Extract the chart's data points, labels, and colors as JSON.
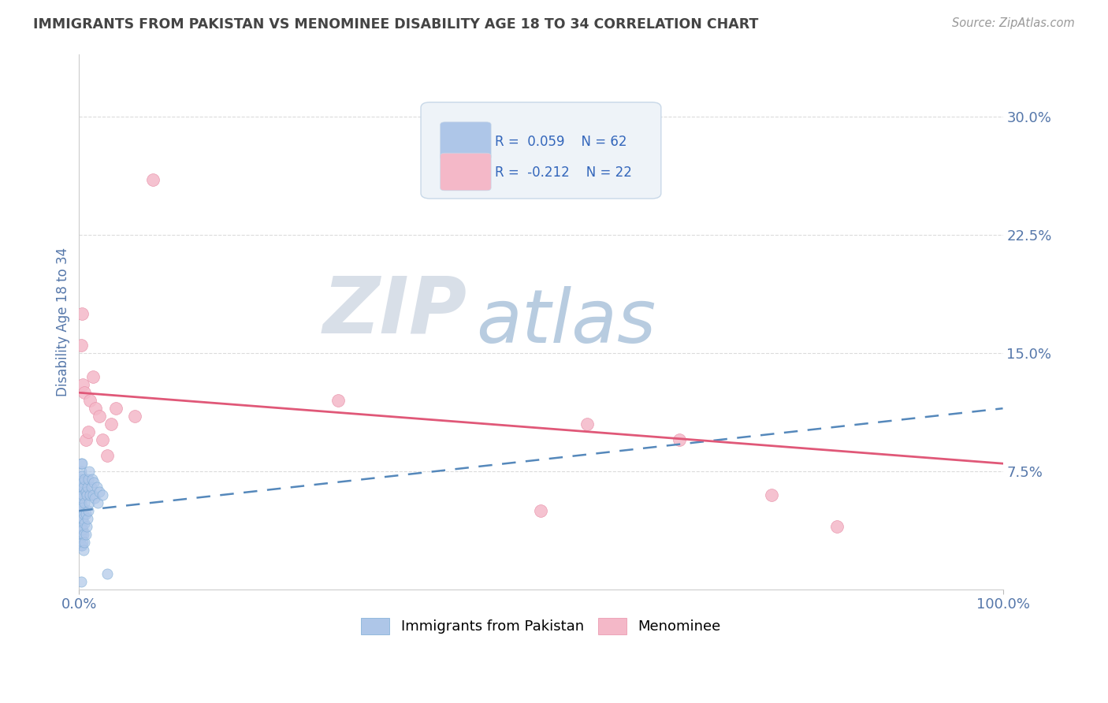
{
  "title": "IMMIGRANTS FROM PAKISTAN VS MENOMINEE DISABILITY AGE 18 TO 34 CORRELATION CHART",
  "source_text": "Source: ZipAtlas.com",
  "ylabel": "Disability Age 18 to 34",
  "xlim": [
    0.0,
    1.0
  ],
  "ylim": [
    0.0,
    0.34
  ],
  "yticks": [
    0.075,
    0.15,
    0.225,
    0.3
  ],
  "ytick_labels": [
    "7.5%",
    "15.0%",
    "22.5%",
    "30.0%"
  ],
  "xtick_labels": [
    "0.0%",
    "100.0%"
  ],
  "xticks": [
    0.0,
    1.0
  ],
  "series1_name": "Immigrants from Pakistan",
  "series1_R": 0.059,
  "series1_N": 62,
  "series1_color": "#aec6e8",
  "series1_edge_color": "#7aaad4",
  "series1_line_color": "#5588bb",
  "series2_name": "Menominee",
  "series2_R": -0.212,
  "series2_N": 22,
  "series2_color": "#f4b8c8",
  "series2_edge_color": "#e890a8",
  "series2_line_color": "#e05878",
  "watermark_zip_color": "#d8dfe8",
  "watermark_atlas_color": "#b8cce0",
  "background_color": "#ffffff",
  "grid_color": "#cccccc",
  "title_color": "#444444",
  "axis_label_color": "#5577aa",
  "legend_R_color": "#3366bb",
  "legend_box_color": "#eef3f8",
  "legend_border_color": "#c8d8e8",
  "blue_line_x0": 0.0,
  "blue_line_y0": 0.05,
  "blue_line_x1": 1.0,
  "blue_line_y1": 0.115,
  "pink_line_x0": 0.0,
  "pink_line_y0": 0.125,
  "pink_line_x1": 1.0,
  "pink_line_y1": 0.08,
  "blue_scatter_x": [
    0.001,
    0.001,
    0.001,
    0.001,
    0.001,
    0.002,
    0.002,
    0.002,
    0.002,
    0.002,
    0.002,
    0.002,
    0.002,
    0.002,
    0.002,
    0.002,
    0.002,
    0.003,
    0.003,
    0.003,
    0.003,
    0.003,
    0.003,
    0.003,
    0.003,
    0.003,
    0.004,
    0.004,
    0.004,
    0.004,
    0.004,
    0.004,
    0.005,
    0.005,
    0.005,
    0.005,
    0.006,
    0.006,
    0.006,
    0.006,
    0.007,
    0.007,
    0.007,
    0.008,
    0.008,
    0.009,
    0.009,
    0.01,
    0.01,
    0.011,
    0.011,
    0.012,
    0.013,
    0.014,
    0.015,
    0.016,
    0.017,
    0.019,
    0.02,
    0.022,
    0.025,
    0.03
  ],
  "blue_scatter_y": [
    0.04,
    0.048,
    0.055,
    0.062,
    0.07,
    0.028,
    0.033,
    0.038,
    0.045,
    0.05,
    0.055,
    0.06,
    0.065,
    0.07,
    0.075,
    0.08,
    0.005,
    0.028,
    0.035,
    0.04,
    0.045,
    0.05,
    0.058,
    0.065,
    0.072,
    0.08,
    0.03,
    0.038,
    0.045,
    0.052,
    0.06,
    0.068,
    0.025,
    0.035,
    0.048,
    0.065,
    0.03,
    0.042,
    0.055,
    0.07,
    0.035,
    0.048,
    0.062,
    0.04,
    0.06,
    0.045,
    0.065,
    0.05,
    0.07,
    0.055,
    0.075,
    0.06,
    0.065,
    0.07,
    0.06,
    0.068,
    0.058,
    0.065,
    0.055,
    0.062,
    0.06,
    0.01
  ],
  "pink_scatter_x": [
    0.002,
    0.003,
    0.004,
    0.006,
    0.007,
    0.01,
    0.012,
    0.015,
    0.018,
    0.022,
    0.025,
    0.03,
    0.035,
    0.04,
    0.06,
    0.08,
    0.5,
    0.55,
    0.65,
    0.75,
    0.82,
    0.28
  ],
  "pink_scatter_y": [
    0.155,
    0.175,
    0.13,
    0.125,
    0.095,
    0.1,
    0.12,
    0.135,
    0.115,
    0.11,
    0.095,
    0.085,
    0.105,
    0.115,
    0.11,
    0.26,
    0.05,
    0.105,
    0.095,
    0.06,
    0.04,
    0.12
  ]
}
